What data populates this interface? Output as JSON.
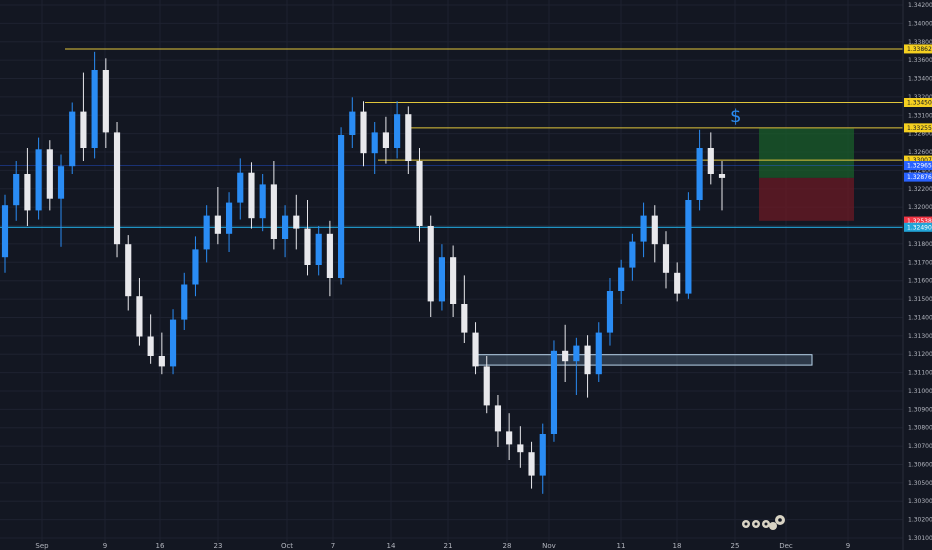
{
  "chart_data": {
    "type": "candlestick",
    "y_range": [
      1.301,
      1.342
    ],
    "y_ticks": [
      "1.34200",
      "1.34000",
      "1.33800",
      "1.33600",
      "1.33400",
      "1.33200",
      "1.33100",
      "1.32800",
      "1.32600",
      "1.32400",
      "1.32200",
      "1.32000",
      "1.31900",
      "1.31800",
      "1.31700",
      "1.31600",
      "1.31500",
      "1.31400",
      "1.31300",
      "1.31200",
      "1.31100",
      "1.31000",
      "1.30900",
      "1.30800",
      "1.30700",
      "1.30600",
      "1.30500",
      "1.30300",
      "1.30200",
      "1.30100"
    ],
    "x_ticks": [
      "Sep",
      "9",
      "16",
      "23",
      "Oct",
      "7",
      "14",
      "21",
      "28",
      "Nov",
      "11",
      "18",
      "25",
      "Dec",
      "9"
    ],
    "price_levels": [
      {
        "label": "1.33862",
        "value": 1.33862,
        "color": "#e0c53b",
        "badge_bg": "#f5d020",
        "badge_fg": "#131722"
      },
      {
        "label": "1.33450",
        "value": 1.3345,
        "color": "#e0c53b",
        "badge_bg": "#f5d020",
        "badge_fg": "#131722"
      },
      {
        "label": "1.33255",
        "value": 1.33255,
        "color": "#e0c53b",
        "badge_bg": "#f5d020",
        "badge_fg": "#131722"
      },
      {
        "label": "1.33007",
        "value": 1.33007,
        "color": "#e0c53b",
        "badge_bg": "#f5d020",
        "badge_fg": "#131722"
      },
      {
        "label": "1.32965",
        "value": 1.32965,
        "color": "#2962ff",
        "badge_bg": "#2962ff",
        "badge_fg": "#ffffff"
      },
      {
        "label": "1.32876",
        "value": 1.32876,
        "color": "#2962ff",
        "badge_bg": "#2962ff",
        "badge_fg": "#ffffff"
      },
      {
        "label": "1.32538",
        "value": 1.32538,
        "color": "#f23645",
        "badge_bg": "#f23645",
        "badge_fg": "#ffffff"
      },
      {
        "label": "1.32490",
        "value": 1.3249,
        "color": "#22a5d8",
        "badge_bg": "#22a5d8",
        "badge_fg": "#ffffff"
      }
    ],
    "zone": {
      "from": 1.3143,
      "to": 1.3151,
      "color": "#8fb7d6"
    },
    "position": {
      "entry": 1.3287,
      "target": 1.3325,
      "stop": 1.3254
    },
    "annotation": "$",
    "candles": [
      [
        1.3226,
        1.3274,
        1.3214,
        1.3266
      ],
      [
        1.3266,
        1.33,
        1.3254,
        1.329
      ],
      [
        1.329,
        1.331,
        1.325,
        1.3262
      ],
      [
        1.3262,
        1.3318,
        1.3255,
        1.3309
      ],
      [
        1.3309,
        1.3316,
        1.3262,
        1.3271
      ],
      [
        1.3271,
        1.3305,
        1.3234,
        1.3296
      ],
      [
        1.3296,
        1.3345,
        1.329,
        1.3338
      ],
      [
        1.3338,
        1.3368,
        1.33,
        1.331
      ],
      [
        1.331,
        1.3384,
        1.3302,
        1.337
      ],
      [
        1.337,
        1.3379,
        1.331,
        1.3322
      ],
      [
        1.3322,
        1.333,
        1.3226,
        1.3236
      ],
      [
        1.3236,
        1.3243,
        1.3185,
        1.3196
      ],
      [
        1.3196,
        1.321,
        1.3158,
        1.3165
      ],
      [
        1.3165,
        1.3182,
        1.3144,
        1.315
      ],
      [
        1.315,
        1.3168,
        1.3136,
        1.3142
      ],
      [
        1.3142,
        1.3186,
        1.3136,
        1.3178
      ],
      [
        1.3178,
        1.3214,
        1.317,
        1.3205
      ],
      [
        1.3205,
        1.3242,
        1.3196,
        1.3232
      ],
      [
        1.3232,
        1.3266,
        1.3222,
        1.3258
      ],
      [
        1.3258,
        1.328,
        1.3236,
        1.3244
      ],
      [
        1.3244,
        1.3276,
        1.323,
        1.3268
      ],
      [
        1.3268,
        1.3302,
        1.3255,
        1.3291
      ],
      [
        1.3291,
        1.3299,
        1.3248,
        1.3256
      ],
      [
        1.3256,
        1.329,
        1.3246,
        1.3282
      ],
      [
        1.3282,
        1.33,
        1.3232,
        1.324
      ],
      [
        1.324,
        1.3266,
        1.3226,
        1.3258
      ],
      [
        1.3258,
        1.3274,
        1.3232,
        1.3248
      ],
      [
        1.3248,
        1.327,
        1.3212,
        1.322
      ],
      [
        1.322,
        1.325,
        1.3212,
        1.3244
      ],
      [
        1.3244,
        1.3254,
        1.3196,
        1.321
      ],
      [
        1.321,
        1.3326,
        1.3205,
        1.332
      ],
      [
        1.332,
        1.3349,
        1.331,
        1.3338
      ],
      [
        1.3338,
        1.3346,
        1.3296,
        1.3306
      ],
      [
        1.3306,
        1.333,
        1.329,
        1.3322
      ],
      [
        1.3322,
        1.3334,
        1.3298,
        1.331
      ],
      [
        1.331,
        1.3346,
        1.3302,
        1.3336
      ],
      [
        1.3336,
        1.3342,
        1.329,
        1.33
      ],
      [
        1.33,
        1.331,
        1.3238,
        1.325
      ],
      [
        1.325,
        1.3258,
        1.318,
        1.3192
      ],
      [
        1.3192,
        1.3236,
        1.3185,
        1.3226
      ],
      [
        1.3226,
        1.3235,
        1.318,
        1.319
      ],
      [
        1.319,
        1.3212,
        1.316,
        1.3168
      ],
      [
        1.3168,
        1.3176,
        1.3136,
        1.3142
      ],
      [
        1.3142,
        1.315,
        1.3106,
        1.3112
      ],
      [
        1.3112,
        1.312,
        1.308,
        1.3092
      ],
      [
        1.3092,
        1.3106,
        1.307,
        1.3082
      ],
      [
        1.3082,
        1.3096,
        1.3064,
        1.3076
      ],
      [
        1.3076,
        1.3084,
        1.3048,
        1.3058
      ],
      [
        1.3058,
        1.3098,
        1.3044,
        1.309
      ],
      [
        1.309,
        1.3162,
        1.3084,
        1.3154
      ],
      [
        1.3154,
        1.3174,
        1.313,
        1.3146
      ],
      [
        1.3146,
        1.3164,
        1.312,
        1.3158
      ],
      [
        1.3158,
        1.3166,
        1.3118,
        1.3136
      ],
      [
        1.3136,
        1.3176,
        1.313,
        1.3168
      ],
      [
        1.3168,
        1.321,
        1.3158,
        1.32
      ],
      [
        1.32,
        1.3224,
        1.319,
        1.3218
      ],
      [
        1.3218,
        1.3244,
        1.3208,
        1.3238
      ],
      [
        1.3238,
        1.3268,
        1.3226,
        1.3258
      ],
      [
        1.3258,
        1.3266,
        1.3222,
        1.3236
      ],
      [
        1.3236,
        1.3246,
        1.3202,
        1.3214
      ],
      [
        1.3214,
        1.3222,
        1.3192,
        1.3198
      ],
      [
        1.3198,
        1.3276,
        1.3194,
        1.327
      ],
      [
        1.327,
        1.3324,
        1.3262,
        1.331
      ],
      [
        1.331,
        1.3322,
        1.3282,
        1.329
      ],
      [
        1.329,
        1.33,
        1.3262,
        1.3287
      ]
    ]
  }
}
